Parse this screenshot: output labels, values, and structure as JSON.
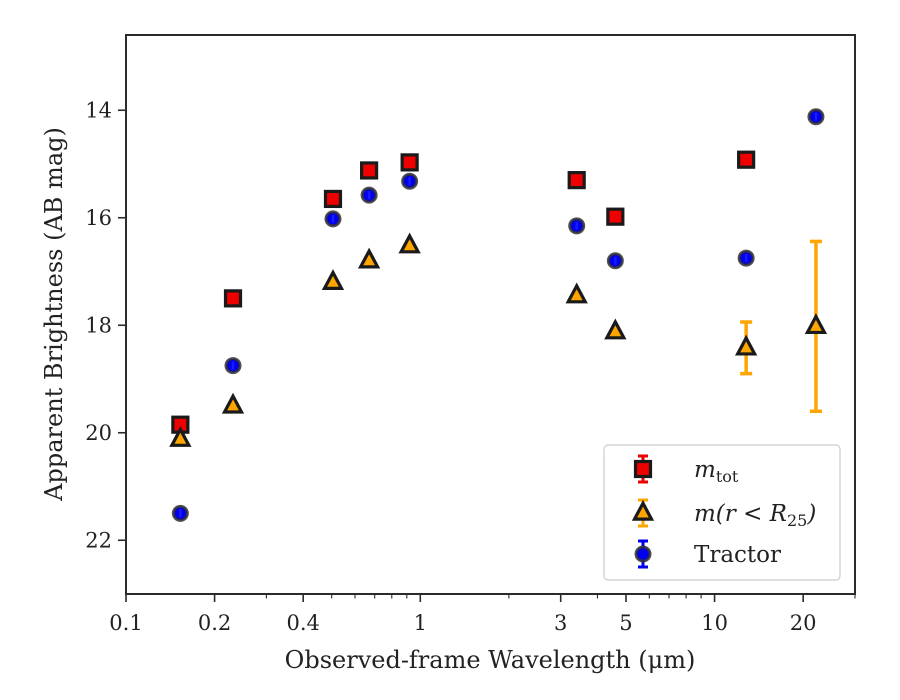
{
  "chart_data": {
    "type": "scatter",
    "xlabel": "Observed-frame Wavelength (μm)",
    "ylabel": "Apparent Brightness (AB mag)",
    "xscale": "log",
    "xlim": [
      0.1,
      30
    ],
    "ylim": [
      23.0,
      12.6
    ],
    "y_inverted": true,
    "xticks": [
      {
        "value": 0.1,
        "label": "0.1"
      },
      {
        "value": 0.2,
        "label": "0.2"
      },
      {
        "value": 0.4,
        "label": "0.4"
      },
      {
        "value": 1,
        "label": "1"
      },
      {
        "value": 3,
        "label": "3"
      },
      {
        "value": 5,
        "label": "5"
      },
      {
        "value": 10,
        "label": "10"
      },
      {
        "value": 20,
        "label": "20"
      }
    ],
    "yticks": [
      {
        "value": 14,
        "label": "14"
      },
      {
        "value": 16,
        "label": "16"
      },
      {
        "value": 18,
        "label": "18"
      },
      {
        "value": 20,
        "label": "20"
      },
      {
        "value": 22,
        "label": "22"
      }
    ],
    "grid": false,
    "legend_position": "lower-right",
    "series": [
      {
        "name": "m_tot",
        "legend_main": "m",
        "legend_sub": "tot",
        "marker": "square",
        "color": "#ee0000",
        "edge_color": "#1a1a1a",
        "error_color": "#ee0000",
        "x": [
          0.153,
          0.231,
          0.505,
          0.67,
          0.92,
          3.4,
          4.6,
          12.8
        ],
        "y": [
          19.85,
          17.5,
          15.65,
          15.12,
          14.97,
          15.3,
          15.98,
          14.92
        ],
        "err": [
          0,
          0,
          0,
          0,
          0,
          0,
          0,
          0
        ]
      },
      {
        "name": "m(r < R25)",
        "legend_main": "m(r < R",
        "legend_sub": "25",
        "legend_close": ")",
        "marker": "triangle",
        "color": "#ffa500",
        "edge_color": "#1a1a1a",
        "error_color": "#ffa500",
        "x": [
          0.153,
          0.231,
          0.505,
          0.67,
          0.92,
          3.4,
          4.6,
          12.8,
          22.1
        ],
        "y": [
          20.12,
          19.5,
          17.2,
          16.8,
          16.52,
          17.45,
          18.12,
          18.42,
          18.02
        ],
        "err": [
          0,
          0,
          0,
          0,
          0,
          0,
          0,
          0.48,
          1.58
        ]
      },
      {
        "name": "Tractor",
        "legend_main": "Tractor",
        "marker": "circle",
        "color": "#0000ee",
        "edge_color": "#333333",
        "error_color": "#0000ee",
        "x": [
          0.153,
          0.231,
          0.505,
          0.67,
          0.92,
          3.4,
          4.6,
          12.8,
          22.1
        ],
        "y": [
          21.5,
          18.75,
          16.02,
          15.58,
          15.32,
          16.15,
          16.8,
          16.75,
          14.12
        ],
        "err": [
          0,
          0,
          0,
          0,
          0,
          0,
          0,
          0,
          0
        ]
      }
    ]
  }
}
